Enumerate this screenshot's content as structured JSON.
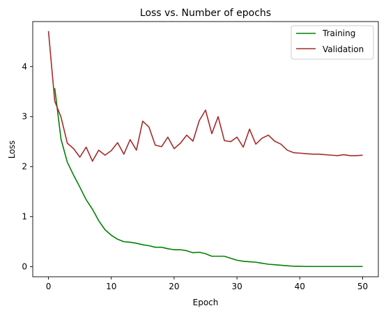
{
  "chart_data": {
    "type": "line",
    "title": "Loss vs. Number of epochs",
    "xlabel": "Epoch",
    "ylabel": "Loss",
    "xlim": [
      -2.5,
      52.5
    ],
    "ylim": [
      -0.2,
      4.9
    ],
    "xticks": [
      0,
      10,
      20,
      30,
      40,
      50
    ],
    "yticks": [
      0,
      1,
      2,
      3,
      4
    ],
    "grid": false,
    "legend_position": "top-right",
    "series": [
      {
        "name": "Training",
        "color": "#008000",
        "x": [
          1,
          2,
          3,
          4,
          5,
          6,
          7,
          8,
          9,
          10,
          11,
          12,
          13,
          14,
          15,
          16,
          17,
          18,
          19,
          20,
          21,
          22,
          23,
          24,
          25,
          26,
          27,
          28,
          29,
          30,
          31,
          32,
          33,
          34,
          35,
          36,
          37,
          38,
          39,
          40,
          41,
          42,
          43,
          44,
          45,
          46,
          47,
          48,
          49,
          50
        ],
        "values": [
          3.57,
          2.55,
          2.09,
          1.83,
          1.59,
          1.34,
          1.15,
          0.92,
          0.74,
          0.63,
          0.55,
          0.5,
          0.49,
          0.47,
          0.44,
          0.42,
          0.39,
          0.39,
          0.36,
          0.34,
          0.34,
          0.32,
          0.28,
          0.29,
          0.26,
          0.21,
          0.21,
          0.21,
          0.17,
          0.13,
          0.11,
          0.1,
          0.09,
          0.07,
          0.05,
          0.04,
          0.03,
          0.02,
          0.01,
          0.01,
          0.005,
          0.005,
          0.005,
          0.005,
          0.005,
          0.005,
          0.005,
          0.005,
          0.005,
          0.005
        ]
      },
      {
        "name": "Validation",
        "color": "#a52a2a",
        "x": [
          0,
          1,
          2,
          3,
          4,
          5,
          6,
          7,
          8,
          9,
          10,
          11,
          12,
          13,
          14,
          15,
          16,
          17,
          18,
          19,
          20,
          21,
          22,
          23,
          24,
          25,
          26,
          27,
          28,
          29,
          30,
          31,
          32,
          33,
          34,
          35,
          36,
          37,
          38,
          39,
          40,
          41,
          42,
          43,
          44,
          45,
          46,
          47,
          48,
          49,
          50
        ],
        "values": [
          4.71,
          3.31,
          2.99,
          2.47,
          2.36,
          2.19,
          2.39,
          2.11,
          2.33,
          2.23,
          2.32,
          2.48,
          2.25,
          2.54,
          2.33,
          2.91,
          2.79,
          2.43,
          2.4,
          2.59,
          2.36,
          2.47,
          2.63,
          2.51,
          2.92,
          3.13,
          2.66,
          3.0,
          2.52,
          2.5,
          2.59,
          2.39,
          2.75,
          2.45,
          2.57,
          2.63,
          2.51,
          2.45,
          2.33,
          2.28,
          2.27,
          2.26,
          2.25,
          2.25,
          2.24,
          2.23,
          2.22,
          2.24,
          2.22,
          2.22,
          2.23
        ]
      }
    ]
  }
}
